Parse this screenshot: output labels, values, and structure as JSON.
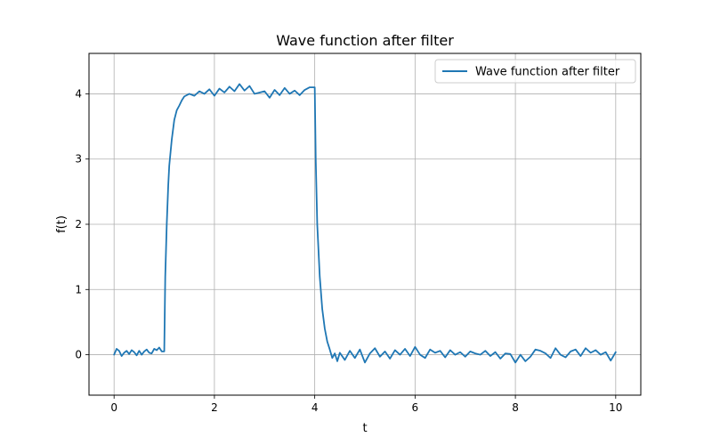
{
  "chart_data": {
    "type": "line",
    "title": "Wave function after filter",
    "xlabel": "t",
    "ylabel": "f(t)",
    "xlim": [
      -0.5,
      10.5
    ],
    "ylim": [
      -0.62,
      4.62
    ],
    "xticks": [
      0,
      2,
      4,
      6,
      8,
      10
    ],
    "yticks": [
      0,
      1,
      2,
      3,
      4
    ],
    "grid": true,
    "legend_position": "top-right",
    "series": [
      {
        "name": "Wave function after filter",
        "color": "#1f77b4",
        "x": [
          0.0,
          0.05,
          0.1,
          0.15,
          0.2,
          0.25,
          0.3,
          0.35,
          0.4,
          0.45,
          0.5,
          0.55,
          0.6,
          0.65,
          0.7,
          0.75,
          0.8,
          0.85,
          0.9,
          0.95,
          1.0,
          1.02,
          1.05,
          1.08,
          1.1,
          1.15,
          1.2,
          1.25,
          1.3,
          1.35,
          1.4,
          1.5,
          1.6,
          1.7,
          1.8,
          1.9,
          2.0,
          2.1,
          2.2,
          2.3,
          2.4,
          2.5,
          2.6,
          2.7,
          2.8,
          2.9,
          3.0,
          3.1,
          3.2,
          3.3,
          3.4,
          3.5,
          3.6,
          3.7,
          3.8,
          3.9,
          3.97,
          4.0,
          4.02,
          4.05,
          4.1,
          4.15,
          4.2,
          4.25,
          4.3,
          4.35,
          4.4,
          4.45,
          4.5,
          4.6,
          4.7,
          4.8,
          4.9,
          5.0,
          5.1,
          5.2,
          5.3,
          5.4,
          5.5,
          5.6,
          5.7,
          5.8,
          5.9,
          6.0,
          6.1,
          6.2,
          6.3,
          6.4,
          6.5,
          6.6,
          6.7,
          6.8,
          6.9,
          7.0,
          7.1,
          7.2,
          7.3,
          7.4,
          7.5,
          7.6,
          7.7,
          7.8,
          7.9,
          8.0,
          8.1,
          8.2,
          8.3,
          8.4,
          8.5,
          8.6,
          8.7,
          8.8,
          8.9,
          9.0,
          9.1,
          9.2,
          9.3,
          9.4,
          9.5,
          9.6,
          9.7,
          9.8,
          9.9,
          10.0
        ],
        "y": [
          0.0,
          0.09,
          0.06,
          -0.02,
          0.03,
          0.06,
          0.01,
          0.07,
          0.04,
          -0.01,
          0.06,
          0.0,
          0.05,
          0.08,
          0.03,
          0.02,
          0.09,
          0.07,
          0.11,
          0.05,
          0.05,
          1.2,
          2.0,
          2.6,
          2.9,
          3.3,
          3.6,
          3.75,
          3.82,
          3.9,
          3.96,
          4.0,
          3.97,
          4.04,
          4.0,
          4.07,
          3.97,
          4.08,
          4.02,
          4.11,
          4.04,
          4.15,
          4.05,
          4.12,
          4.0,
          4.02,
          4.04,
          3.94,
          4.06,
          3.98,
          4.09,
          4.0,
          4.05,
          3.98,
          4.06,
          4.1,
          4.1,
          4.1,
          3.0,
          2.0,
          1.2,
          0.7,
          0.4,
          0.2,
          0.08,
          -0.05,
          0.02,
          -0.1,
          0.03,
          -0.08,
          0.06,
          -0.05,
          0.08,
          -0.12,
          0.02,
          0.1,
          -0.03,
          0.05,
          -0.06,
          0.07,
          0.0,
          0.09,
          -0.02,
          0.12,
          0.0,
          -0.05,
          0.08,
          0.03,
          0.06,
          -0.04,
          0.07,
          0.0,
          0.04,
          -0.03,
          0.05,
          0.02,
          0.0,
          0.06,
          -0.02,
          0.04,
          -0.06,
          0.02,
          0.01,
          -0.12,
          0.0,
          -0.1,
          -0.03,
          0.08,
          0.06,
          0.02,
          -0.05,
          0.1,
          0.0,
          -0.04,
          0.05,
          0.08,
          -0.02,
          0.1,
          0.03,
          0.07,
          0.0,
          0.04,
          -0.09,
          0.04
        ]
      }
    ]
  }
}
